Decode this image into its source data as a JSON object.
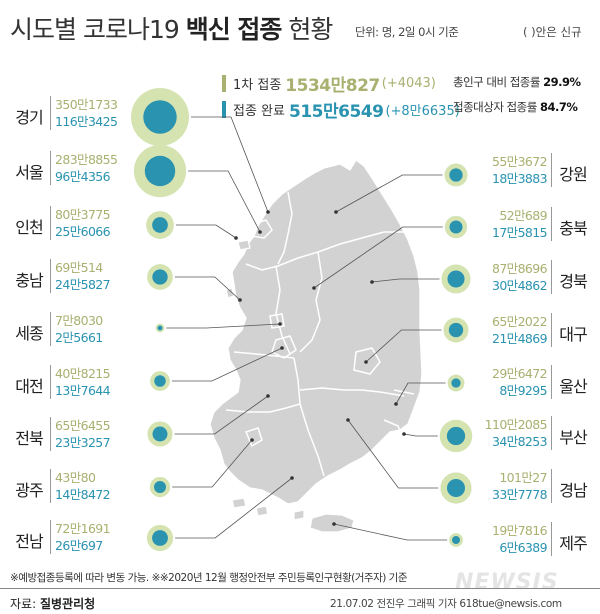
{
  "title": {
    "part1": "시도별 코로나19 ",
    "part2": "백신 접종",
    "part3": " 현황"
  },
  "unit_note": "단위: 명, 2일 0시 기준",
  "paren_note": "( )안은 신규",
  "colors": {
    "first_dose": "#a9b070",
    "completed": "#2a93b0",
    "map_land": "#d2d2d2",
    "map_border": "#ffffff",
    "circle_halo": "#d4e3b0",
    "circle_core": "#2a93b0"
  },
  "summary": {
    "first": {
      "label": "1차 접종",
      "value": "1534만827",
      "delta": "(+4043)"
    },
    "completed": {
      "label": "접종 완료",
      "value": "515만6549",
      "delta": "(+8만6635)"
    }
  },
  "rates": {
    "total": {
      "label": "총인구 대비 접종률",
      "value": "29.9%"
    },
    "target": {
      "label": "접종대상자 접종률",
      "value": "84.7%"
    }
  },
  "provinces_left": [
    {
      "name": "경기",
      "first": "350만1733",
      "completed": "116만3425",
      "first_num": 3501733,
      "completed_num": 1163425
    },
    {
      "name": "서울",
      "first": "283만8855",
      "completed": "96만4356",
      "first_num": 2838855,
      "completed_num": 964356
    },
    {
      "name": "인천",
      "first": "80만3775",
      "completed": "25만6066",
      "first_num": 803775,
      "completed_num": 256066
    },
    {
      "name": "충남",
      "first": "69만514",
      "completed": "24만5827",
      "first_num": 690514,
      "completed_num": 245827
    },
    {
      "name": "세종",
      "first": "7만8030",
      "completed": "2만5661",
      "first_num": 78030,
      "completed_num": 25661
    },
    {
      "name": "대전",
      "first": "40만8215",
      "completed": "13만7644",
      "first_num": 408215,
      "completed_num": 137644
    },
    {
      "name": "전북",
      "first": "65만6455",
      "completed": "23만3257",
      "first_num": 656455,
      "completed_num": 233257
    },
    {
      "name": "광주",
      "first": "43만80",
      "completed": "14만8472",
      "first_num": 430080,
      "completed_num": 148472
    },
    {
      "name": "전남",
      "first": "72만1691",
      "completed": "26만697",
      "first_num": 721691,
      "completed_num": 260697
    }
  ],
  "provinces_right": [
    {
      "name": "강원",
      "first": "55만3672",
      "completed": "18만3883",
      "first_num": 553672,
      "completed_num": 183883
    },
    {
      "name": "충북",
      "first": "52만689",
      "completed": "17만5815",
      "first_num": 520689,
      "completed_num": 175815
    },
    {
      "name": "경북",
      "first": "87만8696",
      "completed": "30만4862",
      "first_num": 878696,
      "completed_num": 304862
    },
    {
      "name": "대구",
      "first": "65만2022",
      "completed": "21만4869",
      "first_num": 652022,
      "completed_num": 214869
    },
    {
      "name": "울산",
      "first": "29만6472",
      "completed": "8만9295",
      "first_num": 296472,
      "completed_num": 89295
    },
    {
      "name": "부산",
      "first": "110만2085",
      "completed": "34만8253",
      "first_num": 1102085,
      "completed_num": 348253
    },
    {
      "name": "경남",
      "first": "101만27",
      "completed": "33만7778",
      "first_num": 1010027,
      "completed_num": 337778
    },
    {
      "name": "제주",
      "first": "19만7816",
      "completed": "6만6389",
      "first_num": 197816,
      "completed_num": 66389
    }
  ],
  "footnote": "※예방접종등록에 따라 변동 가능. ※※2020년 12월 행정안전부 주민등록인구현황(거주자) 기준",
  "source": {
    "label": "자료:",
    "value": "질병관리청"
  },
  "credit": "21.07.02 전진우 그래픽 기자 618tue@newsis.com",
  "watermark": "NEWSIS"
}
